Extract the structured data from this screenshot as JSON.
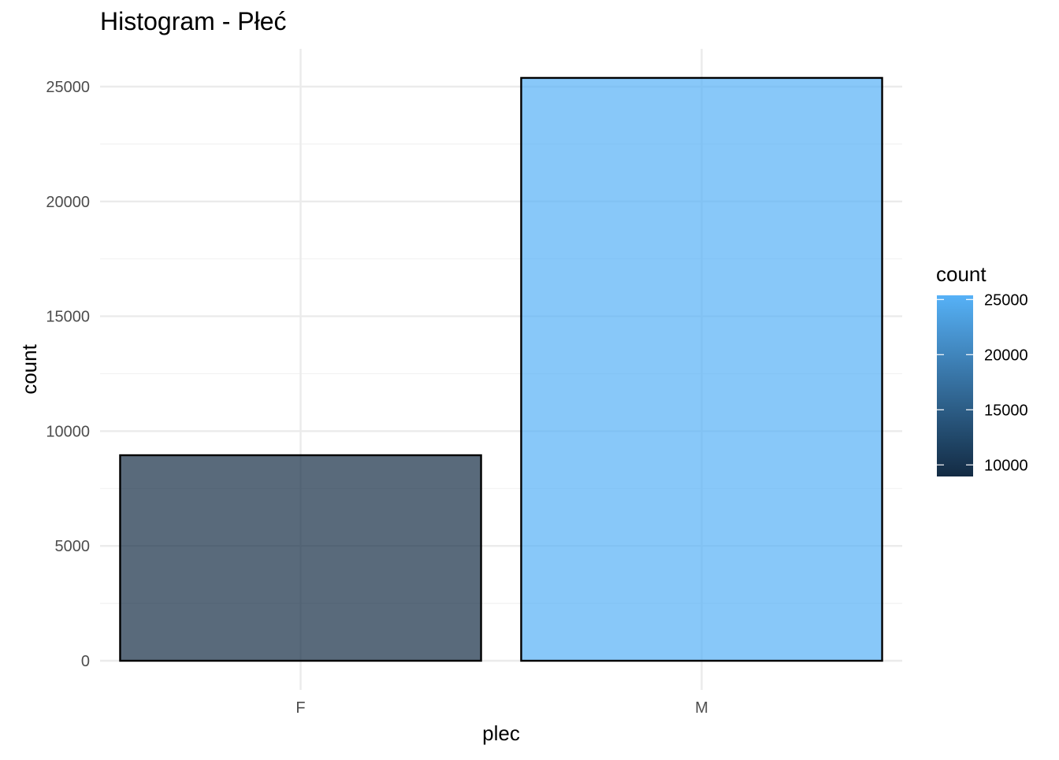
{
  "chart_data": {
    "type": "bar",
    "title": "Histogram - Płeć",
    "xlabel": "plec",
    "ylabel": "count",
    "categories": [
      "F",
      "M"
    ],
    "values": [
      8950,
      25380
    ],
    "ylim": [
      0,
      26700
    ],
    "yticks": [
      0,
      5000,
      10000,
      15000,
      20000,
      25000
    ],
    "grid": true,
    "bar_fill_opacity": 0.7,
    "bar_outline_color": "#000000",
    "legend": {
      "title": "count",
      "placement": "right",
      "type": "colorbar",
      "range": [
        8950,
        25380
      ],
      "ticks": [
        10000,
        15000,
        20000,
        25000
      ],
      "color_low": "#132B43",
      "color_high": "#56B1F7"
    },
    "grid_major_color": "#ebebeb",
    "grid_minor_color": "#f2f2f2"
  }
}
